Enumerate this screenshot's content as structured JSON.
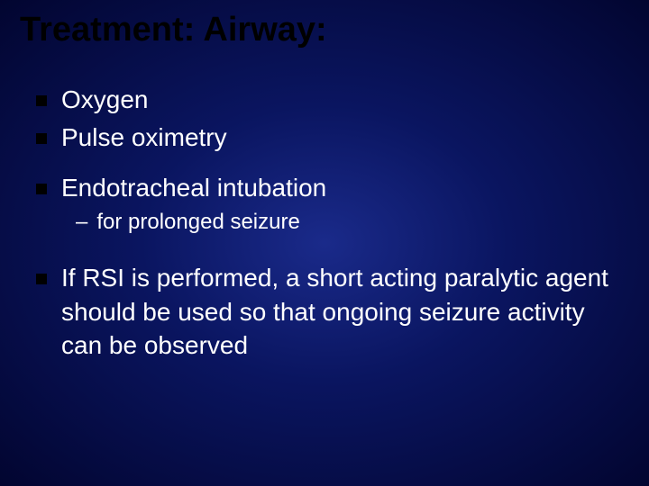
{
  "slide": {
    "title": "Treatment: Airway:",
    "background": {
      "gradient_center": "#1a2a8a",
      "gradient_mid": "#0a1560",
      "gradient_edge": "#020530"
    },
    "title_style": {
      "color": "#000000",
      "fontsize": 38,
      "font_weight": "bold"
    },
    "bullet_style": {
      "marker_color": "#000000",
      "marker_size": 12,
      "text_color": "#ffffff",
      "text_fontsize": 28
    },
    "sub_bullet_style": {
      "marker": "–",
      "text_color": "#ffffff",
      "text_fontsize": 24
    },
    "items": [
      {
        "text": "Oxygen",
        "sub": []
      },
      {
        "text": "Pulse oximetry",
        "sub": []
      },
      {
        "text": "Endotracheal intubation",
        "sub": [
          "for prolonged seizure"
        ]
      },
      {
        "text": "If RSI is performed, a short acting paralytic agent should be used so that ongoing seizure activity can be observed",
        "sub": []
      }
    ]
  }
}
